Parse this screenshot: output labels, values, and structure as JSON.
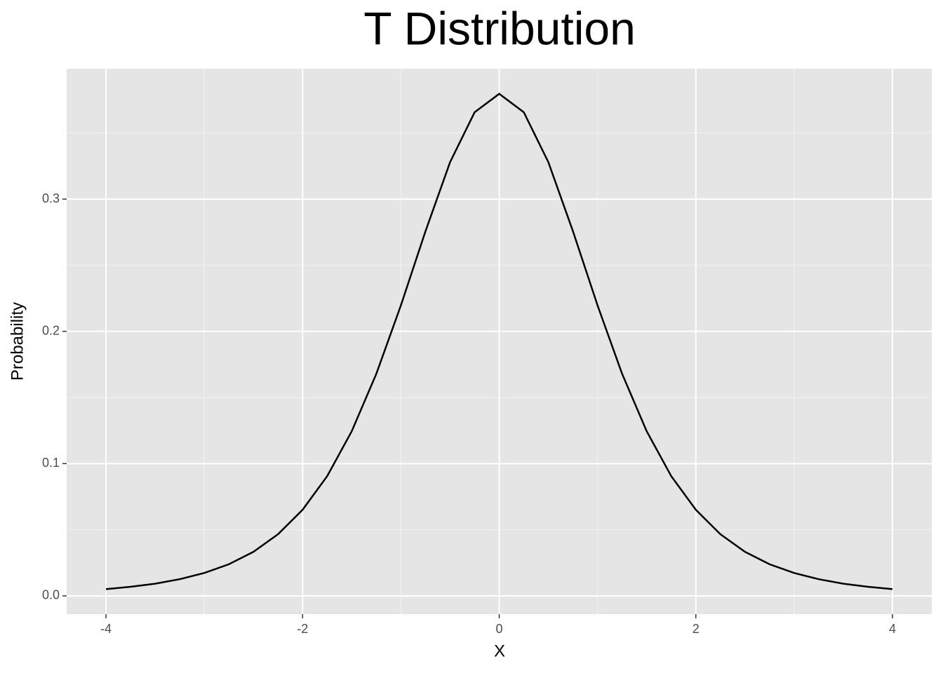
{
  "chart_data": {
    "type": "line",
    "title": "T Distribution",
    "x_label": "X",
    "y_label": "Probability",
    "x": [
      -4,
      -3.75,
      -3.5,
      -3.25,
      -3,
      -2.75,
      -2.5,
      -2.25,
      -2,
      -1.75,
      -1.5,
      -1.25,
      -1,
      -0.75,
      -0.5,
      -0.25,
      0,
      0.25,
      0.5,
      0.75,
      1,
      1.25,
      1.5,
      1.75,
      2,
      2.25,
      2.5,
      2.75,
      3,
      3.25,
      3.5,
      3.75,
      4
    ],
    "series": [
      {
        "color": "#000000",
        "values": [
          0.0051,
          0.0069,
          0.0092,
          0.0126,
          0.0173,
          0.0239,
          0.0333,
          0.0466,
          0.0651,
          0.0905,
          0.1245,
          0.1679,
          0.2197,
          0.2757,
          0.3279,
          0.3657,
          0.3796,
          0.3657,
          0.3279,
          0.2757,
          0.2197,
          0.1679,
          0.1245,
          0.0905,
          0.0651,
          0.0466,
          0.0333,
          0.0239,
          0.0173,
          0.0126,
          0.0092,
          0.0069,
          0.0051
        ]
      }
    ],
    "xlim": [
      -4.4,
      4.4
    ],
    "xticks": [
      -4,
      -2,
      0,
      2,
      4
    ],
    "xminor": [
      -3,
      -1,
      1,
      3
    ],
    "ylim": [
      -0.0138,
      0.3986
    ],
    "yticks": [
      {
        "value": 0,
        "label": "0.0"
      },
      0.1,
      0.2,
      0.3
    ],
    "yminor": [
      0.05,
      0.15,
      0.25,
      0.35
    ],
    "grid": true
  }
}
